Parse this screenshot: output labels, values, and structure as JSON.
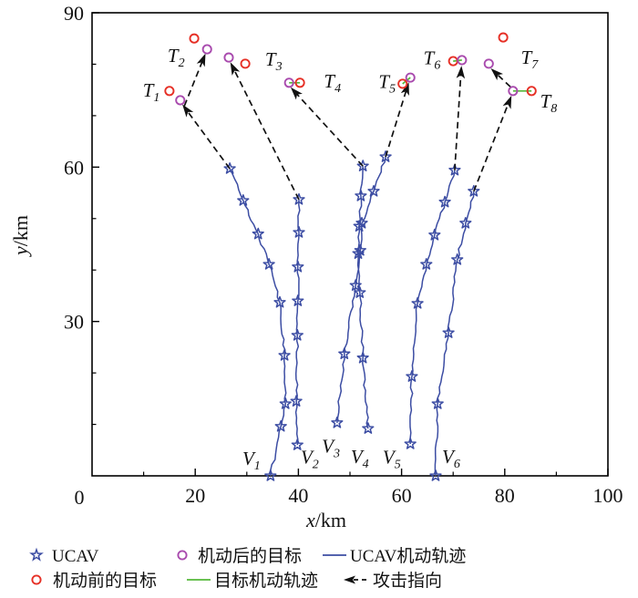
{
  "chart_data": {
    "type": "line",
    "title": "",
    "xlabel": "x/km",
    "ylabel": "y/km",
    "xlim": [
      0,
      100
    ],
    "ylim": [
      0,
      90
    ],
    "xticks": [
      0,
      20,
      40,
      60,
      80,
      100
    ],
    "yticks": [
      0,
      30,
      60,
      90
    ],
    "minor_tick_step": 10,
    "origin_label": "0",
    "grid": false,
    "legend_position": "bottom",
    "colors": {
      "ucav": "#3c4da3",
      "target_before": "#e63026",
      "target_after": "#a94bae",
      "maneuver": "#55b83a",
      "arrow": "#111111",
      "axis": "#000000"
    },
    "ucav_tracks": [
      {
        "name": "V1",
        "label": {
          "main": "V",
          "sub": "1"
        },
        "label_pos": [
          30.9,
          3.4
        ],
        "points": [
          [
            34.6,
            0
          ],
          [
            36.6,
            9.6
          ],
          [
            37.5,
            14.0
          ],
          [
            37.3,
            23.4
          ],
          [
            36.4,
            33.7
          ],
          [
            34.3,
            41.1
          ],
          [
            32.2,
            47.0
          ],
          [
            29.3,
            53.5
          ],
          [
            26.7,
            59.7
          ]
        ]
      },
      {
        "name": "V2",
        "label": {
          "main": "V",
          "sub": "2"
        },
        "label_pos": [
          42.2,
          3.6
        ],
        "points": [
          [
            39.8,
            6.0
          ],
          [
            39.6,
            14.5
          ],
          [
            39.8,
            27.3
          ],
          [
            39.9,
            34.0
          ],
          [
            39.9,
            40.6
          ],
          [
            40.1,
            47.3
          ],
          [
            40.1,
            53.7
          ]
        ]
      },
      {
        "name": "V3",
        "label": {
          "main": "V",
          "sub": "3"
        },
        "label_pos": [
          46.3,
          5.8
        ],
        "points": [
          [
            47.5,
            10.3
          ],
          [
            48.9,
            23.7
          ],
          [
            51.1,
            37.0
          ],
          [
            52.0,
            43.8
          ],
          [
            52.3,
            49.1
          ],
          [
            54.6,
            55.3
          ],
          [
            56.9,
            62.0
          ]
        ]
      },
      {
        "name": "V4",
        "label": {
          "main": "V",
          "sub": "4"
        },
        "label_pos": [
          51.9,
          3.7
        ],
        "points": [
          [
            53.5,
            9.2
          ],
          [
            52.5,
            22.9
          ],
          [
            51.9,
            35.6
          ],
          [
            51.6,
            43.2
          ],
          [
            51.8,
            48.5
          ],
          [
            52.1,
            54.4
          ],
          [
            52.5,
            60.2
          ]
        ]
      },
      {
        "name": "V5",
        "label": {
          "main": "V",
          "sub": "5"
        },
        "label_pos": [
          58.1,
          3.6
        ],
        "points": [
          [
            61.7,
            6.2
          ],
          [
            62.0,
            19.3
          ],
          [
            63.1,
            33.5
          ],
          [
            64.8,
            41.1
          ],
          [
            66.4,
            46.8
          ],
          [
            68.4,
            53.2
          ],
          [
            70.3,
            59.4
          ]
        ]
      },
      {
        "name": "V6",
        "label": {
          "main": "V",
          "sub": "6"
        },
        "label_pos": [
          69.6,
          3.7
        ],
        "points": [
          [
            66.6,
            0
          ],
          [
            67.0,
            14.0
          ],
          [
            69.1,
            27.8
          ],
          [
            70.8,
            42.0
          ],
          [
            72.4,
            49.1
          ],
          [
            74.0,
            55.3
          ]
        ]
      }
    ],
    "targets": [
      {
        "name": "T1",
        "label": {
          "main": "T",
          "sub": "1"
        },
        "label_pos": [
          11.5,
          74.9
        ],
        "before": [
          15.0,
          74.8
        ],
        "after": [
          17.1,
          73.0
        ],
        "maneuver_path": [
          [
            15.0,
            74.8
          ],
          [
            16.0,
            76.5
          ],
          [
            17.7,
            76.2
          ],
          [
            17.8,
            74.3
          ],
          [
            17.1,
            73.0
          ]
        ]
      },
      {
        "name": "T2",
        "label": {
          "main": "T",
          "sub": "2"
        },
        "label_pos": [
          16.3,
          81.7
        ],
        "before": [
          19.8,
          85.0
        ],
        "after": [
          22.3,
          82.9
        ],
        "maneuver_path": [
          [
            19.8,
            85.0
          ],
          [
            21.3,
            84.6
          ],
          [
            22.3,
            82.9
          ]
        ]
      },
      {
        "name": "T3",
        "label": {
          "main": "T",
          "sub": "3"
        },
        "label_pos": [
          35.2,
          81.0
        ],
        "before": [
          29.7,
          80.1
        ],
        "after": [
          26.5,
          81.3
        ],
        "maneuver_path": [
          [
            29.7,
            80.1
          ],
          [
            28.2,
            78.7
          ],
          [
            26.7,
            79.5
          ],
          [
            26.5,
            81.3
          ]
        ]
      },
      {
        "name": "T4",
        "label": {
          "main": "T",
          "sub": "4"
        },
        "label_pos": [
          46.6,
          76.7
        ],
        "before": [
          40.3,
          76.4
        ],
        "after": [
          38.2,
          76.4
        ],
        "maneuver_path": [
          [
            40.3,
            76.4
          ],
          [
            38.2,
            76.4
          ]
        ]
      },
      {
        "name": "T5",
        "label": {
          "main": "T",
          "sub": "5"
        },
        "label_pos": [
          57.2,
          76.6
        ],
        "before": [
          60.2,
          76.2
        ],
        "after": [
          61.7,
          77.4
        ],
        "maneuver_path": [
          [
            60.2,
            76.2
          ],
          [
            61.7,
            77.4
          ]
        ]
      },
      {
        "name": "T6",
        "label": {
          "main": "T",
          "sub": "6"
        },
        "label_pos": [
          65.9,
          81.2
        ],
        "before": [
          70.0,
          80.6
        ],
        "after": [
          71.7,
          80.8
        ],
        "maneuver_path": [
          [
            70.0,
            80.6
          ],
          [
            71.7,
            80.8
          ]
        ]
      },
      {
        "name": "T7",
        "label": {
          "main": "T",
          "sub": "7"
        },
        "label_pos": [
          84.8,
          81.3
        ],
        "before": [
          79.7,
          85.2
        ],
        "after": [
          76.9,
          80.1
        ],
        "maneuver_path": [
          [
            79.7,
            85.2
          ],
          [
            78.1,
            82.5
          ],
          [
            76.9,
            80.1
          ]
        ]
      },
      {
        "name": "T8",
        "label": {
          "main": "T",
          "sub": "8"
        },
        "label_pos": [
          88.5,
          72.8
        ],
        "before": [
          85.2,
          74.8
        ],
        "after": [
          81.6,
          74.8
        ],
        "maneuver_path": [
          [
            85.2,
            74.8
          ],
          [
            81.6,
            74.8
          ]
        ]
      }
    ],
    "attack_arrows": [
      {
        "name": "V1-to-T1",
        "from": [
          26.7,
          59.7
        ],
        "to": [
          17.5,
          72.2
        ]
      },
      {
        "name": "T1-to-T2",
        "from": [
          17.9,
          71.9
        ],
        "to": [
          22.0,
          82.1
        ]
      },
      {
        "name": "V2-to-T3",
        "from": [
          40.1,
          53.7
        ],
        "to": [
          26.8,
          80.4
        ]
      },
      {
        "name": "V4-to-T4",
        "from": [
          52.5,
          60.2
        ],
        "to": [
          38.5,
          75.5
        ]
      },
      {
        "name": "V3-to-T5",
        "from": [
          56.9,
          62.0
        ],
        "to": [
          61.4,
          76.5
        ]
      },
      {
        "name": "V5-to-T6",
        "from": [
          70.3,
          59.4
        ],
        "to": [
          71.6,
          79.7
        ]
      },
      {
        "name": "V6-to-T8",
        "from": [
          74.0,
          55.3
        ],
        "to": [
          81.3,
          73.9
        ]
      },
      {
        "name": "T8-to-T7",
        "from": [
          81.1,
          75.6
        ],
        "to": [
          77.3,
          79.2
        ]
      }
    ],
    "legend": {
      "items": [
        {
          "marker": "ucav-star",
          "label": "UCAV"
        },
        {
          "marker": "target-after-circle",
          "label": "机动后的目标"
        },
        {
          "marker": "ucav-line",
          "label": "UCAV机动轨迹"
        },
        {
          "marker": "target-before-circle",
          "label": "机动前的目标"
        },
        {
          "marker": "maneuver-line",
          "label": "目标机动轨迹"
        },
        {
          "marker": "attack-arrow",
          "label": "攻击指向"
        }
      ]
    }
  }
}
